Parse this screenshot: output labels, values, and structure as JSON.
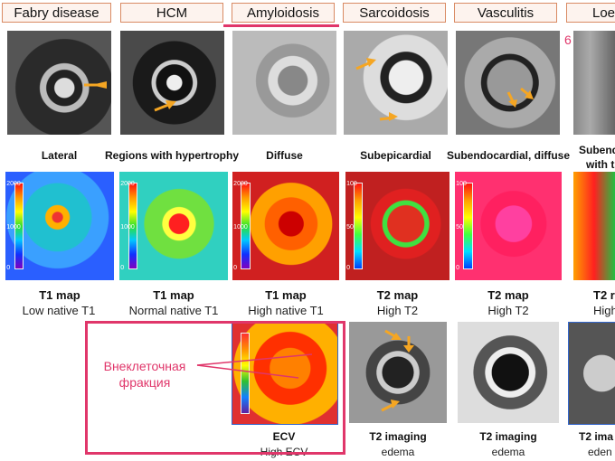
{
  "headers": [
    "Fabry disease",
    "HCM",
    "Amyloidosis",
    "Sarcoidosis",
    "Vasculitis",
    "Loe"
  ],
  "page_number": "6",
  "lge_captions": [
    "Lateral",
    "Regions with hypertrophy",
    "Diffuse",
    "Subepicardial",
    "Subendocardial, diffuse",
    "Subend",
    "with t"
  ],
  "scale_ticks": {
    "t1": [
      "2000",
      "1000",
      "0"
    ],
    "t2": [
      "100",
      "50",
      "0"
    ]
  },
  "maps": [
    {
      "title": "T1 map",
      "sub": "Low native T1"
    },
    {
      "title": "T1 map",
      "sub": "Normal native T1"
    },
    {
      "title": "T1 map",
      "sub": "High native T1"
    },
    {
      "title": "T2 map",
      "sub": "High T2"
    },
    {
      "title": "T2 map",
      "sub": "High T2"
    },
    {
      "title": "T2 r",
      "sub": "High"
    }
  ],
  "bottom": [
    {
      "title": "ECV",
      "sub": "High ECV"
    },
    {
      "title": "T2 imaging",
      "sub": "edema"
    },
    {
      "title": "T2 imaging",
      "sub": "edema"
    },
    {
      "title": "T2 ima",
      "sub": "eden"
    }
  ],
  "annotation": {
    "line1": "Внеклеточная",
    "line2": "фракция"
  },
  "colors": {
    "accent": "#e0366a",
    "header_border": "#d98a63"
  }
}
